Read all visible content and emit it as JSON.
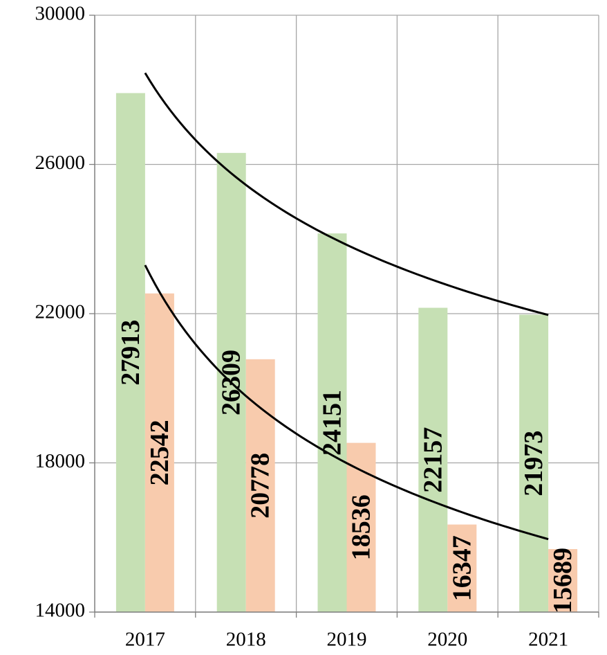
{
  "chart_data": {
    "type": "bar",
    "title": "",
    "xlabel": "",
    "ylabel": "",
    "categories": [
      "2017",
      "2018",
      "2019",
      "2020",
      "2021"
    ],
    "ylim": [
      14000,
      30000
    ],
    "yticks": [
      14000,
      18000,
      22000,
      26000,
      30000
    ],
    "grid": true,
    "legend": "none",
    "series": [
      {
        "values": [
          27913,
          26309,
          24151,
          22157,
          21973
        ],
        "color": "#c6e0b4"
      },
      {
        "values": [
          22542,
          20778,
          18536,
          16347,
          15689
        ],
        "color": "#f8cbad"
      }
    ],
    "trendlines": [
      {
        "type": "power",
        "series_index": 0,
        "color": "#000000"
      },
      {
        "type": "power",
        "series_index": 1,
        "color": "#000000"
      }
    ]
  }
}
